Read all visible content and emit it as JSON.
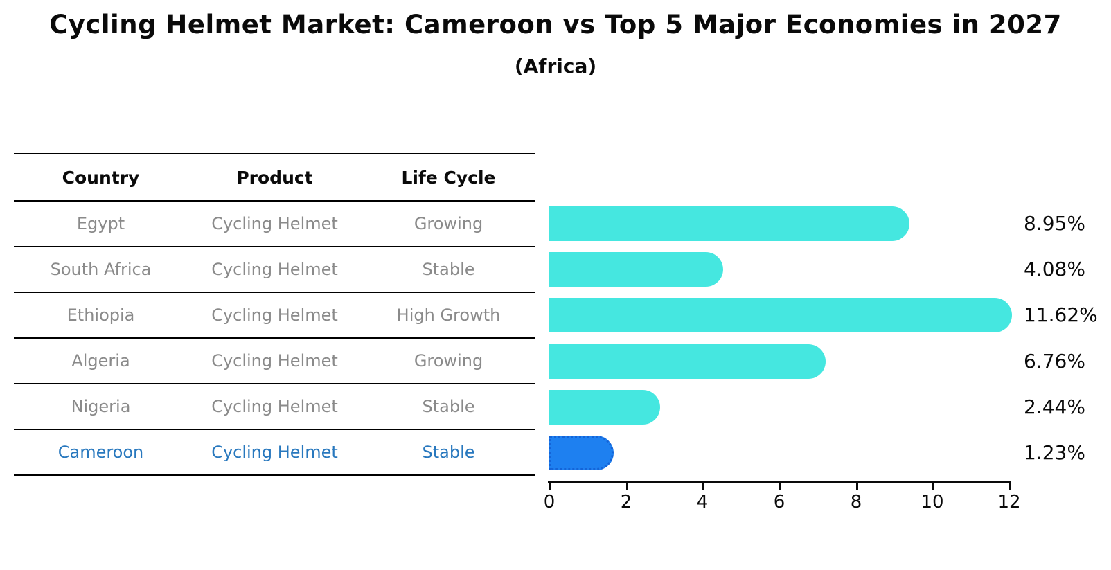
{
  "header": {
    "title": "Cycling Helmet Market: Cameroon vs Top 5 Major Economies in 2027",
    "subtitle": "(Africa)"
  },
  "table": {
    "columns": [
      "Country",
      "Product",
      "Life Cycle"
    ],
    "rows": [
      {
        "country": "Egypt",
        "product": "Cycling Helmet",
        "life_cycle": "Growing",
        "highlighted": false
      },
      {
        "country": "South Africa",
        "product": "Cycling Helmet",
        "life_cycle": "Stable",
        "highlighted": false
      },
      {
        "country": "Ethiopia",
        "product": "Cycling Helmet",
        "life_cycle": "High Growth",
        "highlighted": false
      },
      {
        "country": "Algeria",
        "product": "Cycling Helmet",
        "life_cycle": "Growing",
        "highlighted": false
      },
      {
        "country": "Nigeria",
        "product": "Cycling Helmet",
        "life_cycle": "Stable",
        "highlighted": false
      },
      {
        "country": "Cameroon",
        "product": "Cycling Helmet",
        "life_cycle": "Stable",
        "highlighted": true
      }
    ]
  },
  "chart_data": {
    "type": "bar",
    "orientation": "horizontal",
    "title": "Cycling Helmet Market: Cameroon vs Top 5 Major Economies in 2027",
    "subtitle": "(Africa)",
    "categories": [
      "Egypt",
      "South Africa",
      "Ethiopia",
      "Algeria",
      "Nigeria",
      "Cameroon"
    ],
    "values": [
      8.95,
      4.08,
      11.62,
      6.76,
      2.44,
      1.23
    ],
    "value_labels": [
      "8.95%",
      "4.08%",
      "11.62%",
      "6.76%",
      "2.44%",
      "1.23%"
    ],
    "xlabel": "",
    "ylabel": "",
    "xlim": [
      0,
      12
    ],
    "xticks": [
      0,
      2,
      4,
      6,
      8,
      10,
      12
    ],
    "grid": false,
    "legend": false,
    "bar_color": "#45e7e0",
    "highlight_bar_color": "#1e80f0",
    "highlight_bar_border_color": "#1464d8",
    "highlight_text_color": "#2878be",
    "highlight_index": 5
  }
}
